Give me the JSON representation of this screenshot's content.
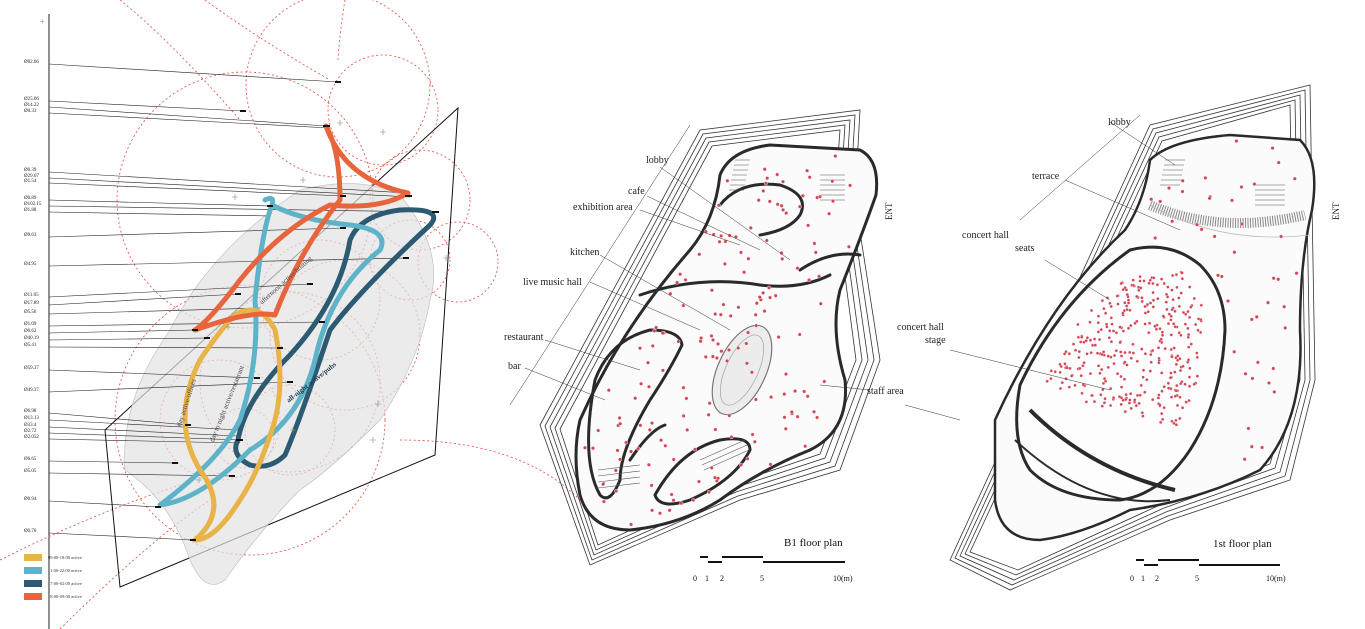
{
  "timeline": {
    "diameter_labels": [
      "Ø82.66",
      "Ø25.06",
      "Ø14.22",
      "Ø0.33",
      "Ø0.39",
      "Ø29.67",
      "Ø1.54",
      "Ø0.89",
      "Ø102.15",
      "Ø1.88",
      "Ø9.63",
      "Ø4.95",
      "Ø11.05",
      "Ø17.89",
      "Ø5.56",
      "Ø1.09",
      "Ø0.62",
      "Ø40.19",
      "Ø5.41",
      "Ø59.37",
      "Ø49.37",
      "Ø6.98",
      "Ø13.13",
      "Ø33.4",
      "Ø2.72",
      "Ø2.052",
      "Ø6.65",
      "Ø5.05",
      "Ø0.94",
      "Ø0.70"
    ],
    "path_labels": {
      "afternoon": "afternoon active/hosting",
      "day_night": "day to night active/restaurant",
      "day": "day active/offices",
      "all_night": "all-night active/pubs"
    },
    "legend": [
      {
        "label": "09:00-18:00 active",
        "color": "#e8b347"
      },
      {
        "label": "11:00-22:00 active",
        "color": "#5fb3c9"
      },
      {
        "label": "17:00-02:00 active",
        "color": "#2c5a73"
      },
      {
        "label": "18:00-09:00 active",
        "color": "#e8643c"
      }
    ]
  },
  "b1_plan": {
    "title": "B1 floor plan",
    "labels": {
      "lobby": "lobby",
      "cafe": "cafe",
      "exhibition": "exhibition area",
      "kitchen": "kitchen",
      "live": "live music hall",
      "restaurant": "restaurant",
      "bar": "bar",
      "staff": "staff area",
      "ent": "ENT"
    },
    "scale": [
      "0",
      "1",
      "2",
      "5",
      "10(m)"
    ]
  },
  "f1_plan": {
    "title": "1st floor plan",
    "labels": {
      "lobby": "lobby",
      "terrace": "terrace",
      "seats": "concert hall\nseats",
      "seats_line1": "concert hall",
      "seats_line2": "seats",
      "stage_line1": "concert hall",
      "stage_line2": "stage",
      "ent": "ENT"
    },
    "scale": [
      "0",
      "1",
      "2",
      "5",
      "10(m)"
    ]
  },
  "colors": {
    "circle": "#e04a3c",
    "dots": "#d14654",
    "wall": "#2a2a2a"
  }
}
